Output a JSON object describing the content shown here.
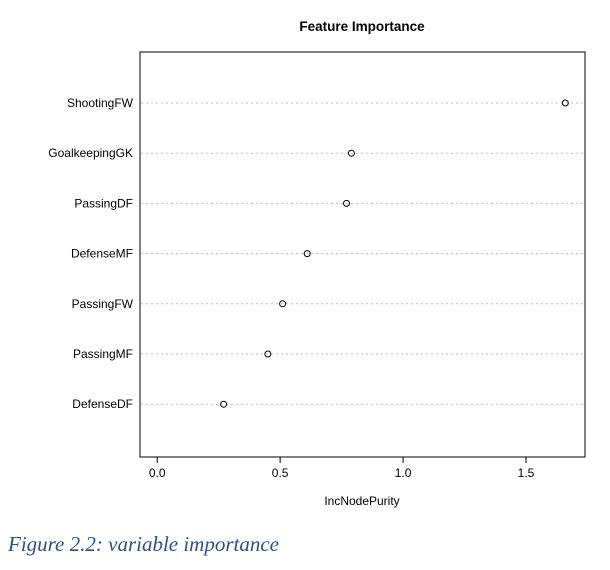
{
  "chart_data": {
    "type": "scatter",
    "title": "Feature Importance",
    "xlabel": "IncNodePurity",
    "ylabel": "",
    "categories": [
      "ShootingFW",
      "GoalkeepingGK",
      "PassingDF",
      "DefenseMF",
      "PassingFW",
      "PassingMF",
      "DefenseDF"
    ],
    "values": [
      1.66,
      0.79,
      0.77,
      0.61,
      0.51,
      0.45,
      0.27
    ],
    "xlim": [
      -0.07,
      1.74
    ],
    "xticks": [
      0.0,
      0.5,
      1.0,
      1.5
    ],
    "xtick_labels": [
      "0.0",
      "0.5",
      "1.0",
      "1.5"
    ],
    "marker": "open-circle",
    "grid": "dotted horizontal per category"
  },
  "caption": "Figure 2.2: variable importance",
  "colors": {
    "caption": "#2e4f8c",
    "grid": "#bbbbbb",
    "frame": "#000000"
  }
}
